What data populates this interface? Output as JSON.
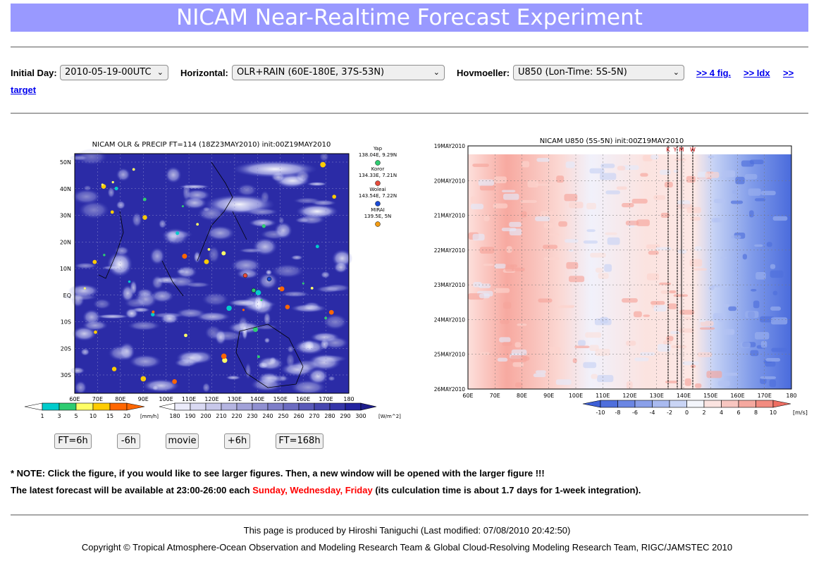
{
  "page": {
    "title": "NICAM Near-Realtime Forecast Experiment"
  },
  "controls": {
    "initial_day": {
      "label": "Initial Day:",
      "value": "2010-05-19-00UTC"
    },
    "horizontal": {
      "label": "Horizontal:",
      "value": "OLR+RAIN (60E-180E, 37S-53N)"
    },
    "hovmoeller": {
      "label": "Hovmoeller:",
      "value": "U850 (Lon-Time: 5S-5N)"
    },
    "links": {
      "four_fig": ">> 4 fig.",
      "idx": ">> Idx",
      "target_arrow": ">>",
      "target": "target"
    }
  },
  "map": {
    "title": "NICAM OLR & PRECIP FT=114 (18Z23MAY2010) init:00Z19MAY2010",
    "lat_ticks": [
      "50N",
      "40N",
      "30N",
      "20N",
      "10N",
      "EQ",
      "10S",
      "20S",
      "30S"
    ],
    "lon_ticks": [
      "60E",
      "70E",
      "80E",
      "90E",
      "100E",
      "110E",
      "120E",
      "130E",
      "140E",
      "150E",
      "160E",
      "170E",
      "180"
    ],
    "stations": [
      {
        "name": "Yap",
        "coords": "138.04E, 9.29N",
        "color": "#2ecc71"
      },
      {
        "name": "Koror",
        "coords": "134.33E, 7.21N",
        "color": "#e74c3c"
      },
      {
        "name": "Woleai",
        "coords": "143.54E, 7.22N",
        "color": "#1a4ad6"
      },
      {
        "name": "MIRAI",
        "coords": "139.5E, 5N",
        "color": "#f39c12"
      }
    ],
    "rain_scale": {
      "ticks": [
        "1",
        "3",
        "5",
        "10",
        "15",
        "20"
      ],
      "unit": "[mm/h]",
      "colors": [
        "#00cccc",
        "#2ecc71",
        "#ffff66",
        "#ffcc00",
        "#ff6600"
      ]
    },
    "olr_scale": {
      "ticks": [
        "180",
        "190",
        "200",
        "210",
        "220",
        "230",
        "240",
        "250",
        "260",
        "270",
        "280",
        "290",
        "300"
      ],
      "unit": "[W/m^2]"
    }
  },
  "hov": {
    "title": "NICAM U850 (5S-5N) init:00Z19MAY2010",
    "time_ticks": [
      "19MAY2010",
      "20MAY2010",
      "21MAY2010",
      "22MAY2010",
      "23MAY2010",
      "24MAY2010",
      "25MAY2010",
      "26MAY2010"
    ],
    "lon_ticks": [
      "60E",
      "70E",
      "80E",
      "90E",
      "100E",
      "110E",
      "120E",
      "130E",
      "140E",
      "150E",
      "160E",
      "170E",
      "180"
    ],
    "markers": [
      "K",
      "Y",
      "M",
      "W"
    ],
    "scale": {
      "ticks": [
        "-10",
        "-8",
        "-6",
        "-4",
        "-2",
        "0",
        "2",
        "4",
        "6",
        "8",
        "10"
      ],
      "unit": "[m/s]"
    }
  },
  "buttons": {
    "ft6": "FT=6h",
    "minus6": "-6h",
    "movie": "movie",
    "plus6": "+6h",
    "ft168": "FT=168h"
  },
  "notes": {
    "note1": "* NOTE: Click the figure, if you would like to see larger figures. Then, a new window will be opened with the larger figure !!!",
    "note2_prefix": "The latest forecast will be available at 23:00-26:00 each ",
    "note2_days": "Sunday, Wednesday, Friday",
    "note2_suffix": " (its culculation time is about 1.7 days for 1-week integration)."
  },
  "footer": {
    "produced": "This page is produced by Hiroshi Taniguchi (Last modified: 07/08/2010 20:42:50)",
    "copyright": "Copyright © Tropical Atmosphere-Ocean Observation and Modeling Research Team & Global Cloud-Resolving Modeling Research Team, RIGC/JAMSTEC 2010"
  }
}
